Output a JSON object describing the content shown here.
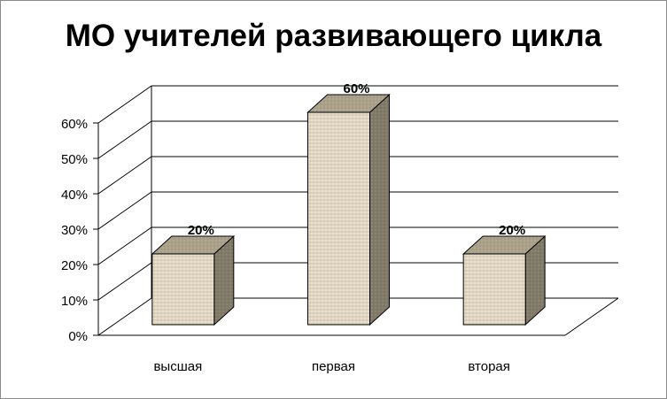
{
  "chart_data": {
    "type": "bar",
    "title": "МО учителей развивающего цикла",
    "categories": [
      "высшая",
      "первая",
      "вторая"
    ],
    "values": [
      20,
      60,
      20
    ],
    "value_labels": [
      "20%",
      "60%",
      "20%"
    ],
    "ylim": [
      0,
      60
    ],
    "yticks": [
      0,
      10,
      20,
      30,
      40,
      50,
      60
    ],
    "ytick_labels": [
      "0%",
      "10%",
      "20%",
      "30%",
      "40%",
      "50%",
      "60%"
    ],
    "grid": true,
    "legend": "none",
    "style": "3d-column",
    "colors": {
      "bar_front": "#e6dccb",
      "bar_top": "#b3a993",
      "bar_side": "#8b826f",
      "grid": "#000000",
      "border": "#8c8c8c"
    }
  }
}
